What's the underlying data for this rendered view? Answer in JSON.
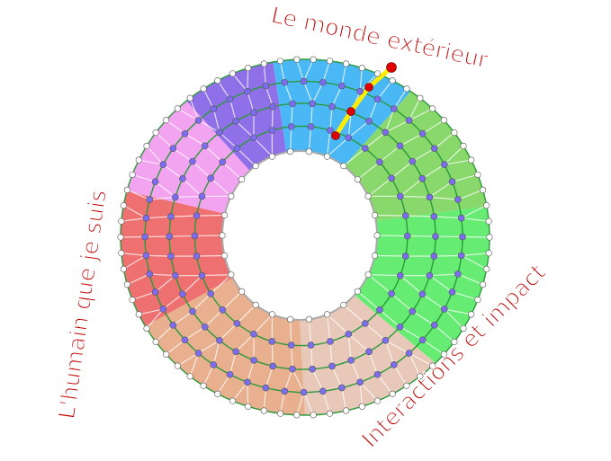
{
  "labels": {
    "top": "Le monde extérieur",
    "left": "L'humain que je suis",
    "bottom_right": "Interactions et impact"
  },
  "colors": {
    "label": "#c00000",
    "ring_line": "#2a9a3a",
    "path_highlight": "#ffee00",
    "path_node": "#e00000",
    "inner_node": "#7b6cf0",
    "edge_node": "#ffffff",
    "sectors": [
      "#4ab8f5",
      "#88d86c",
      "#66ec72",
      "#e8c8b8",
      "#e8b08e",
      "#ee7070",
      "#f3a4f0",
      "#9070e8"
    ]
  }
}
